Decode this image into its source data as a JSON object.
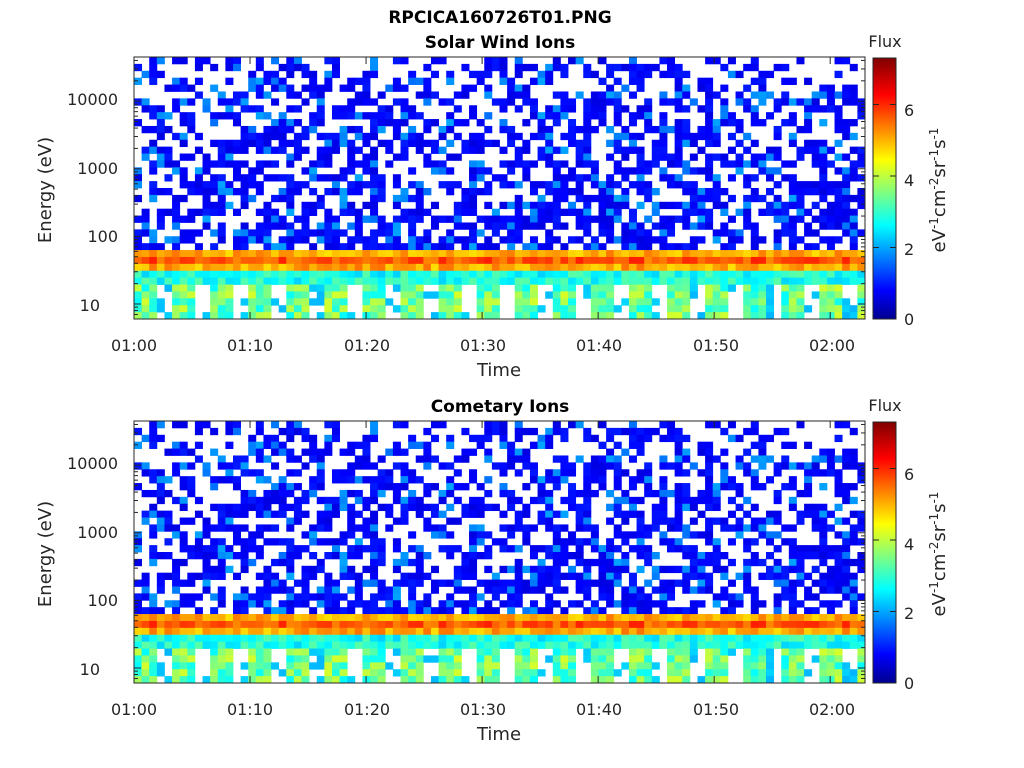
{
  "figure_title": "RPCICA160726T01.PNG",
  "chart_data": [
    {
      "type": "heatmap",
      "title": "Solar Wind Ions",
      "xlabel": "Time",
      "ylabel": "Energy (eV)",
      "x_range": [
        "01:00",
        "02:03"
      ],
      "x_ticks": [
        "01:00",
        "01:10",
        "01:20",
        "01:30",
        "01:40",
        "01:50",
        "02:00"
      ],
      "y_scale": "log",
      "y_range": [
        6,
        45000
      ],
      "y_ticks": [
        "10",
        "100",
        "1000",
        "10000"
      ],
      "colorbar": {
        "label": "Flux",
        "unit_label": "eV-1cm-2sr-1s-1",
        "range": [
          0,
          7.3
        ],
        "ticks": [
          "0",
          "2",
          "4",
          "6"
        ],
        "colormap": "jet"
      },
      "features": {
        "background_level": 0.7,
        "band_energy_ev": [
          35,
          55
        ],
        "band_peak_level": 5.8,
        "low_energy_pulses_ev": [
          7,
          30
        ],
        "low_energy_level": 3.5,
        "pulse_period_min": 3.2
      }
    },
    {
      "type": "heatmap",
      "title": "Cometary Ions",
      "xlabel": "Time",
      "ylabel": "Energy (eV)",
      "x_range": [
        "01:00",
        "02:03"
      ],
      "x_ticks": [
        "01:00",
        "01:10",
        "01:20",
        "01:30",
        "01:40",
        "01:50",
        "02:00"
      ],
      "y_scale": "log",
      "y_range": [
        6,
        45000
      ],
      "y_ticks": [
        "10",
        "100",
        "1000",
        "10000"
      ],
      "colorbar": {
        "label": "Flux",
        "unit_label": "eV-1cm-2sr-1s-1",
        "range": [
          0,
          7.3
        ],
        "ticks": [
          "0",
          "2",
          "4",
          "6"
        ],
        "colormap": "jet"
      },
      "features": {
        "background_level": 0.7,
        "band_energy_ev": [
          35,
          55
        ],
        "band_peak_level": 5.8,
        "low_energy_pulses_ev": [
          7,
          30
        ],
        "low_energy_level": 3.5,
        "pulse_period_min": 3.2
      }
    }
  ]
}
